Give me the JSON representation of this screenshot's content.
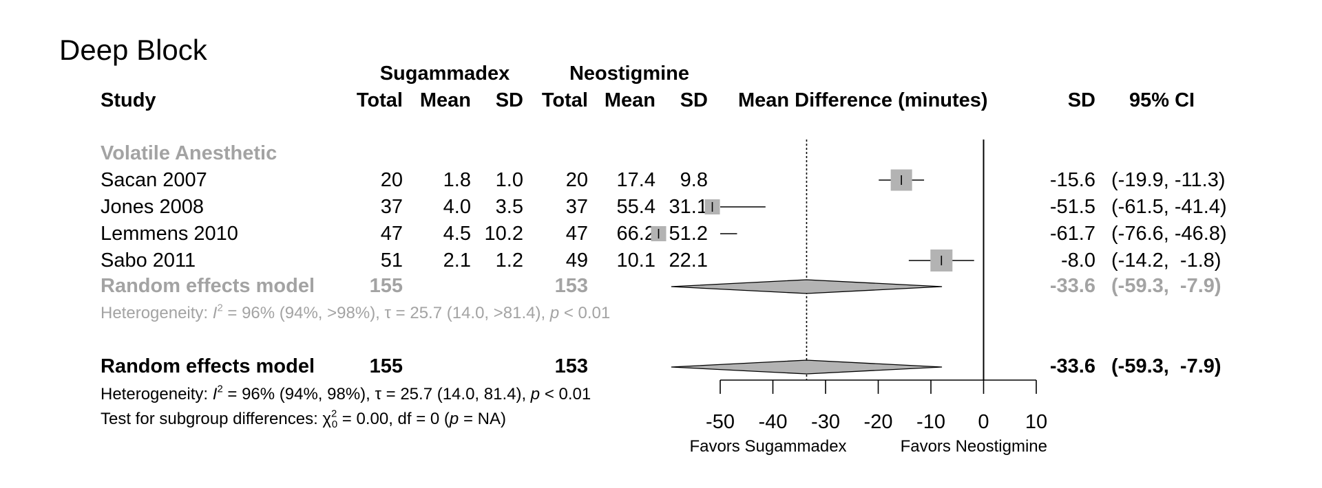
{
  "title": "Deep Block",
  "header": {
    "group1": "Sugammadex",
    "group2": "Neostigmine",
    "study": "Study",
    "total": "Total",
    "mean": "Mean",
    "sd": "SD",
    "effect_col": "Mean Difference (minutes)",
    "sd_col": "SD",
    "ci_col": "95% CI"
  },
  "subgroup": {
    "label": "Volatile Anesthetic",
    "model_label": "Random effects model",
    "total1": "155",
    "total2": "153",
    "est": "-33.6",
    "ci": "(-59.3,  -7.9)",
    "het": {
      "prefix": "Heterogeneity: ",
      "I": "I",
      "exp": "2",
      "mid": " = 96% (94%, >98%), τ = 25.7 (14.0, >81.4), ",
      "p": "p",
      "tail": " < 0.01"
    }
  },
  "overall": {
    "model_label": "Random effects model",
    "total1": "155",
    "total2": "153",
    "est": "-33.6",
    "ci": "(-59.3,  -7.9)",
    "het": {
      "prefix": "Heterogeneity: ",
      "I": "I",
      "exp": "2",
      "mid": " = 96% (94%, 98%), τ = 25.7 (14.0, 81.4), ",
      "p": "p",
      "tail": " < 0.01"
    },
    "test": {
      "prefix": "Test for subgroup differences: χ",
      "sup": "2",
      "sub": "0",
      "mid": " = 0.00, df = 0 (",
      "p": "p",
      "tail": " = NA)"
    }
  },
  "axis": {
    "ticks": [
      "-50",
      "-40",
      "-30",
      "-20",
      "-10",
      "0",
      "10"
    ],
    "favors_left": "Favors Sugammadex",
    "favors_right": "Favors Neostigmine"
  },
  "chart_data": {
    "type": "forest",
    "title": "Deep Block",
    "xlabel": "Mean Difference (minutes)",
    "xlim": [
      -50,
      10
    ],
    "xticks": [
      -50,
      -40,
      -30,
      -20,
      -10,
      0,
      10
    ],
    "null_line": 0,
    "pooled_line": -33.6,
    "studies": [
      {
        "name": "Sacan 2007",
        "t1": 20,
        "m1": "1.8",
        "sd1": "1.0",
        "t2": 20,
        "m2": "17.4",
        "sd2": "9.8",
        "md": -15.6,
        "lo": -19.9,
        "hi": -11.3,
        "md_label": "-15.6",
        "ci_label": "(-19.9, -11.3)",
        "weight": 0.9
      },
      {
        "name": "Jones 2008",
        "t1": 37,
        "m1": "4.0",
        "sd1": "3.5",
        "t2": 37,
        "m2": "55.4",
        "sd2": "31.1",
        "md": -51.5,
        "lo": -61.5,
        "hi": -41.4,
        "md_label": "-51.5",
        "ci_label": "(-61.5, -41.4)",
        "weight": 0.0
      },
      {
        "name": "Lemmens 2010",
        "t1": 47,
        "m1": "4.5",
        "sd1": "10.2",
        "t2": 47,
        "m2": "66.2",
        "sd2": "51.2",
        "md": -61.7,
        "lo": -76.6,
        "hi": -46.8,
        "md_label": "-61.7",
        "ci_label": "(-76.6, -46.8)",
        "weight": 0.0
      },
      {
        "name": "Sabo 2011",
        "t1": 51,
        "m1": "2.1",
        "sd1": "1.2",
        "t2": 49,
        "m2": "10.1",
        "sd2": "22.1",
        "md": -8.0,
        "lo": -14.2,
        "hi": -1.8,
        "md_label": "-8.0",
        "ci_label": "(-14.2,  -1.8)",
        "weight": 1.0
      }
    ],
    "subgroup_summary": {
      "md": -33.6,
      "lo": -59.3,
      "hi": -7.9
    },
    "overall_summary": {
      "md": -33.6,
      "lo": -59.3,
      "hi": -7.9
    },
    "colors": {
      "box": "#b3b3b3",
      "summary": "#b3b3b3",
      "subgroup_text": "#a3a3a3",
      "line": "#000000"
    }
  }
}
